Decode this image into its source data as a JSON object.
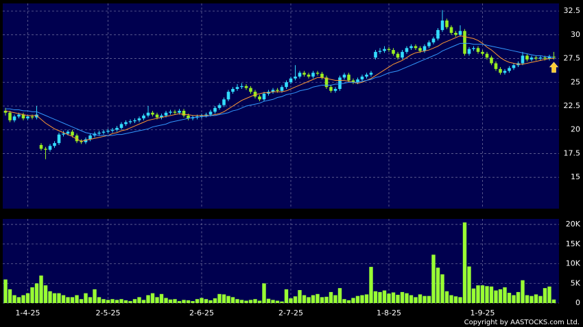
{
  "chart_data": {
    "type": "candlestick",
    "categories": [
      null,
      null,
      null,
      null,
      null,
      "1-4-25",
      null,
      null,
      null,
      null,
      null,
      null,
      null,
      null,
      null,
      null,
      null,
      null,
      null,
      null,
      null,
      null,
      null,
      "2-5-25",
      null,
      null,
      null,
      null,
      null,
      null,
      null,
      null,
      null,
      null,
      null,
      null,
      null,
      null,
      null,
      null,
      null,
      null,
      null,
      null,
      "2-6-25",
      null,
      null,
      null,
      null,
      null,
      null,
      null,
      null,
      null,
      null,
      null,
      null,
      null,
      null,
      null,
      null,
      null,
      null,
      null,
      "2-7-25",
      null,
      null,
      null,
      null,
      null,
      null,
      null,
      null,
      null,
      null,
      null,
      null,
      null,
      null,
      null,
      null,
      null,
      null,
      null,
      null,
      null,
      "1-8-25",
      null,
      null,
      null,
      null,
      null,
      null,
      null,
      null,
      null,
      null,
      null,
      null,
      null,
      null,
      null,
      null,
      null,
      null,
      null,
      null,
      "1-9-25",
      null,
      null,
      null,
      null,
      null,
      null,
      null,
      null,
      null,
      null,
      null,
      null,
      null,
      null,
      null,
      null
    ],
    "open": [
      22.0,
      21.8,
      21.0,
      21.4,
      21.6,
      21.2,
      21.4,
      21.3,
      18.4,
      18.0,
      17.9,
      18.3,
      18.6,
      19.5,
      19.6,
      19.8,
      19.4,
      18.8,
      18.7,
      19.0,
      19.4,
      19.6,
      19.7,
      19.8,
      19.9,
      20.0,
      20.2,
      20.6,
      20.8,
      20.9,
      21.0,
      21.2,
      21.5,
      21.8,
      21.6,
      21.3,
      21.5,
      21.8,
      21.9,
      21.8,
      22.0,
      21.5,
      21.2,
      21.3,
      21.4,
      21.5,
      21.6,
      21.9,
      22.3,
      22.6,
      23.2,
      24.0,
      24.3,
      24.5,
      24.6,
      24.4,
      24.0,
      23.5,
      23.2,
      23.8,
      24.0,
      24.2,
      24.1,
      24.5,
      25.0,
      25.4,
      25.6,
      26.0,
      25.8,
      25.6,
      26.0,
      25.9,
      25.5,
      24.5,
      24.1,
      24.3,
      25.5,
      25.8,
      25.2,
      25.0,
      25.3,
      25.6,
      25.8,
      27.6,
      28.2,
      28.3,
      28.5,
      28.4,
      28.0,
      27.6,
      28.2,
      28.6,
      28.8,
      28.6,
      28.3,
      28.8,
      29.2,
      29.6,
      30.5,
      31.5,
      30.8,
      30.2,
      30.0,
      30.4,
      28.0,
      28.5,
      28.6,
      28.2,
      28.0,
      27.6,
      27.0,
      26.4,
      26.0,
      26.2,
      26.5,
      26.8,
      27.0,
      27.8,
      27.4,
      27.6,
      27.5,
      27.6,
      27.5,
      27.7
    ],
    "high": [
      22.3,
      22.0,
      21.6,
      21.8,
      21.8,
      21.6,
      21.6,
      22.5,
      18.6,
      18.2,
      18.5,
      18.8,
      19.7,
      19.9,
      20.0,
      20.0,
      19.6,
      19.0,
      19.2,
      19.6,
      19.8,
      19.9,
      20.0,
      20.1,
      20.2,
      20.4,
      20.8,
      21.0,
      21.1,
      21.2,
      21.4,
      21.7,
      22.5,
      22.0,
      21.8,
      21.7,
      22.0,
      22.1,
      22.1,
      22.2,
      22.2,
      21.7,
      21.5,
      21.6,
      21.7,
      21.8,
      22.1,
      22.5,
      22.8,
      23.4,
      24.2,
      24.5,
      24.8,
      24.9,
      24.8,
      24.6,
      24.2,
      23.7,
      24.0,
      24.2,
      24.4,
      24.4,
      24.7,
      25.2,
      25.6,
      26.8,
      26.2,
      26.2,
      26.0,
      26.2,
      26.2,
      26.1,
      25.7,
      24.7,
      24.5,
      25.7,
      26.0,
      26.0,
      25.4,
      25.5,
      25.8,
      26.0,
      26.2,
      28.4,
      28.6,
      28.8,
      28.7,
      28.6,
      28.2,
      28.4,
      28.8,
      29.0,
      29.0,
      28.8,
      29.0,
      29.4,
      29.8,
      30.7,
      32.6,
      31.7,
      31.0,
      30.4,
      31.0,
      30.6,
      28.7,
      28.8,
      28.8,
      28.4,
      28.2,
      27.8,
      27.2,
      26.6,
      26.4,
      26.7,
      27.0,
      27.2,
      28.2,
      28.0,
      27.8,
      27.8,
      27.8,
      27.8,
      27.9,
      28.2
    ],
    "low": [
      21.5,
      20.8,
      20.8,
      21.2,
      21.0,
      21.0,
      21.1,
      21.1,
      17.8,
      16.9,
      17.7,
      18.1,
      18.4,
      19.3,
      19.4,
      19.2,
      18.6,
      18.5,
      18.5,
      18.8,
      19.2,
      19.4,
      19.5,
      19.6,
      19.7,
      19.8,
      20.0,
      20.4,
      20.6,
      20.7,
      20.8,
      21.0,
      21.3,
      21.4,
      21.1,
      21.1,
      21.3,
      21.6,
      21.6,
      21.6,
      21.3,
      21.0,
      21.0,
      21.1,
      21.2,
      21.3,
      21.4,
      21.7,
      22.1,
      22.4,
      23.0,
      23.8,
      24.1,
      24.3,
      24.2,
      23.8,
      23.3,
      23.0,
      23.0,
      23.6,
      23.8,
      23.9,
      23.9,
      24.3,
      24.8,
      25.2,
      25.4,
      25.6,
      25.4,
      25.4,
      25.7,
      25.3,
      24.3,
      23.9,
      23.9,
      24.1,
      25.3,
      25.0,
      24.8,
      24.8,
      25.1,
      25.4,
      25.6,
      27.4,
      28.0,
      28.1,
      28.2,
      27.8,
      27.4,
      27.4,
      28.0,
      28.4,
      28.4,
      28.1,
      28.1,
      28.6,
      29.0,
      29.4,
      30.3,
      30.6,
      30.0,
      29.8,
      29.8,
      27.8,
      27.8,
      28.3,
      28.0,
      27.8,
      27.4,
      26.8,
      26.2,
      25.8,
      25.8,
      26.0,
      26.3,
      26.6,
      26.8,
      27.2,
      27.2,
      27.3,
      27.3,
      27.3,
      27.3,
      27.4
    ],
    "close": [
      21.8,
      21.0,
      21.4,
      21.6,
      21.2,
      21.4,
      21.3,
      21.6,
      18.0,
      17.9,
      18.3,
      18.6,
      19.5,
      19.6,
      19.8,
      19.4,
      18.8,
      18.7,
      19.0,
      19.4,
      19.6,
      19.7,
      19.8,
      19.9,
      20.0,
      20.2,
      20.6,
      20.8,
      20.9,
      21.0,
      21.2,
      21.5,
      21.8,
      21.6,
      21.3,
      21.5,
      21.8,
      21.9,
      21.8,
      22.0,
      21.5,
      21.2,
      21.3,
      21.4,
      21.5,
      21.6,
      21.9,
      22.3,
      22.6,
      23.2,
      24.0,
      24.3,
      24.5,
      24.6,
      24.4,
      24.0,
      23.5,
      23.2,
      23.8,
      24.0,
      24.2,
      24.1,
      24.5,
      25.0,
      25.4,
      25.6,
      26.0,
      25.8,
      25.6,
      26.0,
      25.9,
      25.5,
      24.5,
      24.1,
      24.3,
      25.5,
      25.8,
      25.2,
      25.0,
      25.3,
      25.6,
      25.8,
      26.0,
      28.2,
      28.3,
      28.5,
      28.4,
      28.0,
      27.6,
      28.2,
      28.6,
      28.8,
      28.6,
      28.3,
      28.8,
      29.2,
      29.6,
      30.5,
      31.5,
      30.8,
      30.2,
      30.0,
      30.4,
      28.0,
      28.5,
      28.6,
      28.2,
      28.0,
      27.6,
      27.0,
      26.4,
      26.0,
      26.2,
      26.5,
      26.8,
      27.0,
      27.8,
      27.4,
      27.6,
      27.5,
      27.6,
      27.5,
      27.7,
      27.6
    ],
    "up_color": "#33ddff",
    "down_color": "#99ee22",
    "ma_lines": [
      {
        "color": "#ff9933",
        "values": [
          22.0,
          21.9,
          21.8,
          21.7,
          21.6,
          21.5,
          21.5,
          21.5,
          21.1,
          20.7,
          20.4,
          20.1,
          19.9,
          19.7,
          19.5,
          19.3,
          19.0,
          18.8,
          18.9,
          19.0,
          19.1,
          19.2,
          19.3,
          19.4,
          19.6,
          19.7,
          19.9,
          20.0,
          20.2,
          20.4,
          20.6,
          20.8,
          21.0,
          21.1,
          21.2,
          21.3,
          21.4,
          21.5,
          21.6,
          21.7,
          21.6,
          21.6,
          21.5,
          21.5,
          21.5,
          21.5,
          21.5,
          21.6,
          21.7,
          21.9,
          22.2,
          22.5,
          22.8,
          23.1,
          23.3,
          23.5,
          23.7,
          23.8,
          23.9,
          23.9,
          24.0,
          24.0,
          24.0,
          24.1,
          24.3,
          24.5,
          24.7,
          24.9,
          25.1,
          25.3,
          25.5,
          25.5,
          25.4,
          25.3,
          25.2,
          25.2,
          25.2,
          25.1,
          25.0,
          24.9,
          25.0,
          25.2,
          25.4,
          25.7,
          26.0,
          26.3,
          26.6,
          26.9,
          27.1,
          27.3,
          27.6,
          27.9,
          28.1,
          28.2,
          28.3,
          28.4,
          28.6,
          28.8,
          29.1,
          29.3,
          29.5,
          29.7,
          29.9,
          29.8,
          29.7,
          29.6,
          29.4,
          29.1,
          28.7,
          28.4,
          28.0,
          27.6,
          27.3,
          27.1,
          27.0,
          26.9,
          26.9,
          27.0,
          27.1,
          27.2,
          27.3,
          27.4,
          27.5,
          27.5
        ]
      },
      {
        "color": "#3399ff",
        "values": [
          22.2,
          22.2,
          22.1,
          22.1,
          22.0,
          22.0,
          21.9,
          21.9,
          21.7,
          21.5,
          21.3,
          21.1,
          20.9,
          20.7,
          20.5,
          20.3,
          20.1,
          19.9,
          19.7,
          19.6,
          19.5,
          19.4,
          19.4,
          19.4,
          19.4,
          19.5,
          19.5,
          19.6,
          19.7,
          19.8,
          19.9,
          20.0,
          20.1,
          20.3,
          20.4,
          20.5,
          20.6,
          20.8,
          20.9,
          21.0,
          21.1,
          21.2,
          21.3,
          21.3,
          21.4,
          21.4,
          21.5,
          21.5,
          21.6,
          21.7,
          21.8,
          22.0,
          22.1,
          22.3,
          22.5,
          22.6,
          22.7,
          22.8,
          23.0,
          23.1,
          23.2,
          23.4,
          23.5,
          23.7,
          23.8,
          23.9,
          24.1,
          24.2,
          24.3,
          24.5,
          24.6,
          24.7,
          24.7,
          24.7,
          24.8,
          24.8,
          24.9,
          25.0,
          25.0,
          25.0,
          25.1,
          25.2,
          25.3,
          25.5,
          25.6,
          25.8,
          26.0,
          26.1,
          26.2,
          26.4,
          26.6,
          26.8,
          27.0,
          27.2,
          27.4,
          27.6,
          27.8,
          28.0,
          28.3,
          28.5,
          28.7,
          28.9,
          29.1,
          29.1,
          29.1,
          29.0,
          29.0,
          29.0,
          28.9,
          28.8,
          28.7,
          28.6,
          28.5,
          28.4,
          28.3,
          28.2,
          28.1,
          28.0,
          27.9,
          27.8,
          27.8,
          27.7,
          27.7,
          27.6
        ]
      }
    ],
    "ylim": [
      11.7,
      33.3
    ],
    "yticks": [
      15,
      17.5,
      20,
      22.5,
      25,
      27.5,
      30,
      32.5
    ],
    "grid": true,
    "volume": {
      "color": "#99ff33",
      "values": [
        6000,
        3500,
        2000,
        1500,
        2000,
        2500,
        4000,
        5000,
        7000,
        4500,
        3000,
        2500,
        2500,
        2000,
        1500,
        1500,
        2000,
        1000,
        2500,
        1500,
        3500,
        1500,
        1000,
        800,
        1000,
        800,
        1000,
        700,
        500,
        1000,
        1500,
        800,
        2000,
        2500,
        1500,
        2300,
        1300,
        900,
        1000,
        500,
        800,
        700,
        500,
        1000,
        1300,
        1000,
        700,
        1200,
        2300,
        2200,
        1800,
        1500,
        1000,
        800,
        600,
        800,
        1000,
        600,
        5000,
        1100,
        800,
        600,
        400,
        3500,
        1200,
        1700,
        3300,
        2000,
        1500,
        2000,
        2300,
        1500,
        1600,
        2800,
        2000,
        3800,
        1000,
        700,
        1300,
        1800,
        2000,
        2200,
        9200,
        3000,
        2800,
        3200,
        2400,
        2700,
        2100,
        2800,
        2500,
        2000,
        1500,
        2200,
        1800,
        1800,
        12300,
        9000,
        7300,
        3000,
        2000,
        1700,
        1500,
        20500,
        9300,
        3700,
        4500,
        4500,
        4300,
        4200,
        3200,
        3500,
        4000,
        2600,
        2000,
        2800,
        5800,
        2000,
        1800,
        2200,
        1800,
        3800,
        4200,
        900
      ],
      "ylim": [
        0,
        21400
      ],
      "yticks": [
        0,
        {
          "value": 5000,
          "label": "5K"
        },
        {
          "value": 10000,
          "label": "10K"
        },
        {
          "value": 15000,
          "label": "15K"
        },
        {
          "value": 20000,
          "label": "20K"
        }
      ]
    },
    "copyright": "Copyright by AASTOCKS.com Ltd."
  }
}
